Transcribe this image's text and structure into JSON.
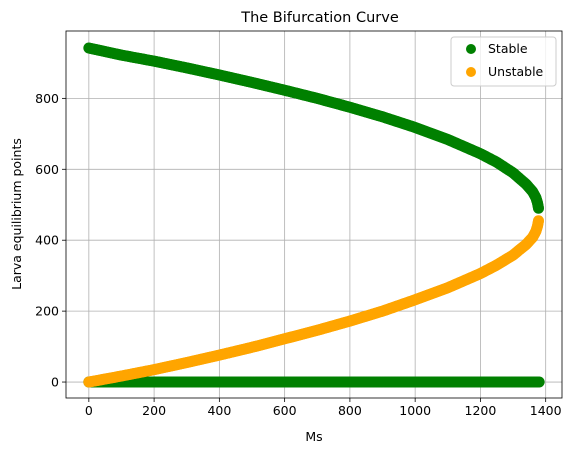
{
  "chart_data": {
    "type": "scatter",
    "title": "The Bifurcation Curve",
    "xlabel": "Ms",
    "ylabel": "Larva equilibrium points",
    "xlim": [
      -70,
      1450
    ],
    "ylim": [
      -45,
      990
    ],
    "xticks": [
      0,
      200,
      400,
      600,
      800,
      1000,
      1200,
      1400
    ],
    "yticks": [
      0,
      200,
      400,
      600,
      800
    ],
    "grid": true,
    "legend_position": "top-right",
    "series": [
      {
        "name": "Stable",
        "color": "#008000",
        "points": [
          [
            0,
            942
          ],
          [
            100,
            922
          ],
          [
            200,
            905
          ],
          [
            300,
            886
          ],
          [
            400,
            866
          ],
          [
            500,
            845
          ],
          [
            600,
            823
          ],
          [
            700,
            800
          ],
          [
            800,
            775
          ],
          [
            900,
            748
          ],
          [
            1000,
            718
          ],
          [
            1100,
            684
          ],
          [
            1200,
            644
          ],
          [
            1250,
            620
          ],
          [
            1300,
            590
          ],
          [
            1340,
            558
          ],
          [
            1360,
            537
          ],
          [
            1370,
            520
          ],
          [
            1375,
            505
          ],
          [
            1378,
            490
          ]
        ]
      },
      {
        "name": "Stable",
        "color": "#008000",
        "points": [
          [
            0,
            0
          ],
          [
            200,
            0
          ],
          [
            400,
            0
          ],
          [
            600,
            0
          ],
          [
            800,
            0
          ],
          [
            1000,
            0
          ],
          [
            1200,
            0
          ],
          [
            1380,
            0
          ]
        ]
      },
      {
        "name": "Unstable",
        "color": "#ffa500",
        "points": [
          [
            0,
            0
          ],
          [
            100,
            17
          ],
          [
            200,
            35
          ],
          [
            300,
            55
          ],
          [
            400,
            76
          ],
          [
            500,
            98
          ],
          [
            600,
            122
          ],
          [
            700,
            146
          ],
          [
            800,
            172
          ],
          [
            900,
            200
          ],
          [
            1000,
            232
          ],
          [
            1100,
            266
          ],
          [
            1200,
            306
          ],
          [
            1250,
            330
          ],
          [
            1300,
            358
          ],
          [
            1340,
            388
          ],
          [
            1360,
            408
          ],
          [
            1370,
            425
          ],
          [
            1375,
            440
          ],
          [
            1378,
            455
          ]
        ]
      }
    ],
    "legend": [
      {
        "label": "Stable",
        "color": "#008000"
      },
      {
        "label": "Unstable",
        "color": "#ffa500"
      }
    ]
  }
}
